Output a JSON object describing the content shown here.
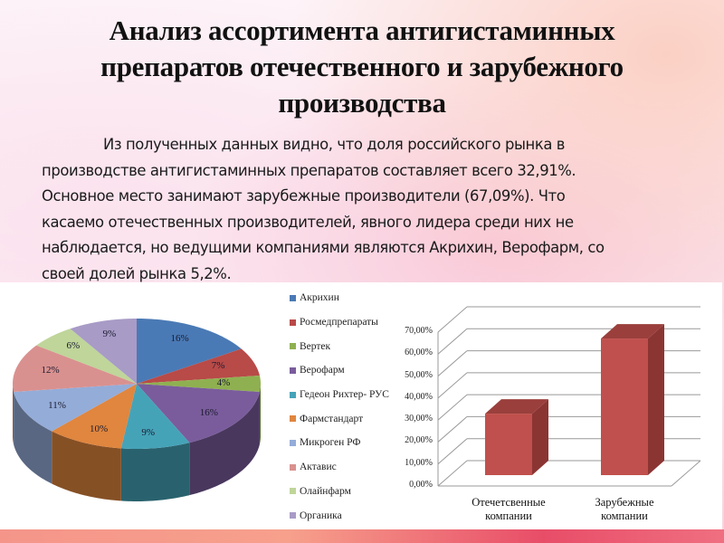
{
  "slide": {
    "title": "Анализ ассортимента антигистаминных препаратов отечественного и зарубежного производства",
    "title_lines": [
      "Анализ ассортимента антигистаминных",
      "препаратов отечественного и зарубежного",
      "производства"
    ],
    "paragraph": "Из полученных данных видно, что доля российского рынка в производстве антигистаминных препаратов составляет всего 32,91%. Основное место занимают зарубежные производители (67,09%). Что касаемо отечественных производителей, явного лидера среди них не наблюдается, но ведущими компаниями являются Акрихин, Верофарм, со своей долей рынка 5,2%.",
    "paragraph_lines": [
      "Из полученных данных видно, что доля российского рынка в",
      "производстве антигистаминных препаратов составляет всего 32,91%.",
      "Основное место занимают зарубежные производители (67,09%). Что",
      "касаемо отечественных производителей, явного лидера среди них не",
      "наблюдается, но ведущими компаниями являются Акрихин, Верофарм, со",
      "своей долей рынка 5,2%."
    ]
  },
  "chart_data": [
    {
      "type": "pie",
      "title": "",
      "style": "3d",
      "legend_position": "right",
      "categories": [
        "Акрихин",
        "Росмедпрепараты",
        "Вертек",
        "Верофарм",
        "Гедеон Рихтер- РУС",
        "Фармстандарт",
        "Микроген РФ",
        "Актавис",
        "Олайнфарм",
        "Органика"
      ],
      "values": [
        16,
        7,
        4,
        16,
        9,
        10,
        11,
        12,
        6,
        9
      ],
      "labels": [
        "16%",
        "7%",
        "4%",
        "16%",
        "9%",
        "10%",
        "11%",
        "12%",
        "6%",
        "9%"
      ],
      "colors": [
        "#4a7ab5",
        "#b84a48",
        "#8fb050",
        "#7a5c9c",
        "#45a3b8",
        "#e0863e",
        "#94acd8",
        "#d9918f",
        "#bfd59a",
        "#a89bc6"
      ]
    },
    {
      "type": "bar",
      "title": "",
      "style": "3d",
      "categories": [
        "Отечетсвенные компании",
        "Зарубежные компании"
      ],
      "category_lines": [
        [
          "Отечетсвенные",
          "компании"
        ],
        [
          "Зарубежные",
          "компании"
        ]
      ],
      "values": [
        32.91,
        67.09
      ],
      "color": "#c0504d",
      "ylim": [
        0,
        70
      ],
      "yticks": [
        "0,00%",
        "10,00%",
        "20,00%",
        "30,00%",
        "40,00%",
        "50,00%",
        "60,00%",
        "70,00%"
      ],
      "grid": true,
      "xlabel": "",
      "ylabel": ""
    }
  ]
}
